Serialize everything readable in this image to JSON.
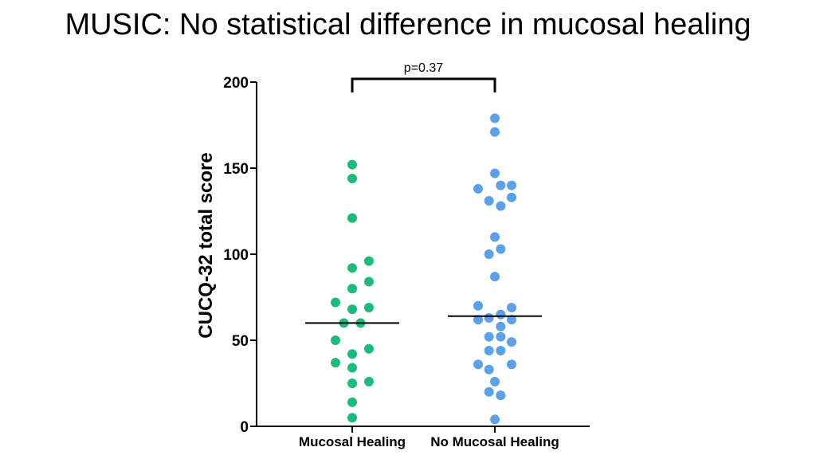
{
  "slide": {
    "title": "MUSIC: No statistical difference in mucosal healing"
  },
  "chart_data": {
    "type": "scatter",
    "title": "MUSIC: No statistical difference in mucosal healing",
    "ylabel": "CUCQ-32 total score",
    "xlabel": "",
    "categories": [
      "Mucosal Healing",
      "No Mucosal Healing"
    ],
    "ylim": [
      0,
      200
    ],
    "yticks": [
      0,
      50,
      100,
      150,
      200
    ],
    "annotation": "p=0.37",
    "colors": {
      "Mucosal Healing": "#1abc7b",
      "No Mucosal Healing": "#5aa0ea",
      "axis": "#000000"
    },
    "series": [
      {
        "name": "Mucosal Healing",
        "median": 60,
        "points": [
          {
            "offset": 0,
            "y": 152
          },
          {
            "offset": 0,
            "y": 144
          },
          {
            "offset": 0,
            "y": 121
          },
          {
            "offset": 0,
            "y": 92
          },
          {
            "offset": 1,
            "y": 96
          },
          {
            "offset": 1,
            "y": 84
          },
          {
            "offset": 0,
            "y": 80
          },
          {
            "offset": -1,
            "y": 72
          },
          {
            "offset": 0,
            "y": 68
          },
          {
            "offset": 1,
            "y": 69
          },
          {
            "offset": -0.5,
            "y": 60
          },
          {
            "offset": 0.5,
            "y": 60
          },
          {
            "offset": -1,
            "y": 50
          },
          {
            "offset": 0,
            "y": 42
          },
          {
            "offset": 1,
            "y": 45
          },
          {
            "offset": -1,
            "y": 37
          },
          {
            "offset": 0,
            "y": 34
          },
          {
            "offset": 0,
            "y": 25
          },
          {
            "offset": 1,
            "y": 26
          },
          {
            "offset": 0,
            "y": 14
          },
          {
            "offset": 0,
            "y": 5
          }
        ]
      },
      {
        "name": "No Mucosal Healing",
        "median": 64,
        "points": [
          {
            "offset": 0,
            "y": 179
          },
          {
            "offset": 0,
            "y": 171
          },
          {
            "offset": 0,
            "y": 147
          },
          {
            "offset": -1,
            "y": 138
          },
          {
            "offset": 0.35,
            "y": 140
          },
          {
            "offset": 1,
            "y": 140
          },
          {
            "offset": -0.35,
            "y": 131
          },
          {
            "offset": 1,
            "y": 133
          },
          {
            "offset": 0.35,
            "y": 128
          },
          {
            "offset": 0,
            "y": 110
          },
          {
            "offset": -0.35,
            "y": 100
          },
          {
            "offset": 0.35,
            "y": 103
          },
          {
            "offset": 0,
            "y": 87
          },
          {
            "offset": -1,
            "y": 70
          },
          {
            "offset": 1,
            "y": 69
          },
          {
            "offset": -0.35,
            "y": 63
          },
          {
            "offset": 0.35,
            "y": 65
          },
          {
            "offset": -1,
            "y": 62
          },
          {
            "offset": 1,
            "y": 62
          },
          {
            "offset": 0.35,
            "y": 58
          },
          {
            "offset": -0.35,
            "y": 52
          },
          {
            "offset": 0.35,
            "y": 52
          },
          {
            "offset": 1,
            "y": 49
          },
          {
            "offset": -0.35,
            "y": 44
          },
          {
            "offset": 0.35,
            "y": 44
          },
          {
            "offset": -1,
            "y": 36
          },
          {
            "offset": 1,
            "y": 36
          },
          {
            "offset": -0.35,
            "y": 33
          },
          {
            "offset": 0,
            "y": 26
          },
          {
            "offset": -0.35,
            "y": 20
          },
          {
            "offset": 0.35,
            "y": 18
          },
          {
            "offset": 0,
            "y": 4
          }
        ]
      }
    ]
  }
}
